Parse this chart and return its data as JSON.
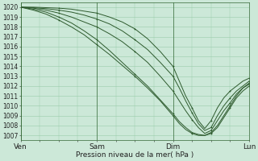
{
  "xlabel": "Pression niveau de la mer( hPa )",
  "bg_color": "#cce8d8",
  "grid_color": "#99ccaa",
  "line_color": "#2d5a2d",
  "ylim": [
    1006.5,
    1020.5
  ],
  "xlim": [
    0,
    72
  ],
  "xtick_positions": [
    0,
    24,
    48,
    72
  ],
  "xtick_labels": [
    "Ven",
    "Sam",
    "Dim",
    "Lun"
  ],
  "ytick_positions": [
    1007,
    1008,
    1009,
    1010,
    1011,
    1012,
    1013,
    1014,
    1015,
    1016,
    1017,
    1018,
    1019,
    1020
  ],
  "series": [
    {
      "x": [
        0,
        4,
        8,
        12,
        16,
        20,
        24,
        28,
        32,
        36,
        40,
        44,
        48,
        50,
        52,
        54,
        56,
        58,
        60,
        62,
        64,
        66,
        68,
        70,
        72
      ],
      "y": [
        1020.0,
        1019.7,
        1019.3,
        1018.7,
        1018.0,
        1017.2,
        1016.2,
        1015.2,
        1014.1,
        1013.0,
        1011.8,
        1010.5,
        1009.0,
        1008.2,
        1007.6,
        1007.2,
        1007.0,
        1007.0,
        1007.2,
        1007.8,
        1008.8,
        1009.8,
        1010.8,
        1011.5,
        1012.0
      ]
    },
    {
      "x": [
        0,
        4,
        8,
        12,
        16,
        20,
        24,
        28,
        32,
        36,
        40,
        44,
        48,
        50,
        52,
        54,
        56,
        58,
        60,
        62,
        64,
        66,
        68,
        70,
        72
      ],
      "y": [
        1020.0,
        1019.8,
        1019.5,
        1019.0,
        1018.4,
        1017.6,
        1016.7,
        1015.6,
        1014.4,
        1013.2,
        1012.0,
        1010.6,
        1009.2,
        1008.4,
        1007.8,
        1007.3,
        1007.1,
        1007.0,
        1007.3,
        1008.0,
        1009.0,
        1010.0,
        1011.0,
        1011.8,
        1012.3
      ]
    },
    {
      "x": [
        0,
        4,
        8,
        12,
        16,
        20,
        24,
        28,
        32,
        36,
        40,
        44,
        48,
        50,
        52,
        54,
        56,
        58,
        60,
        62,
        64,
        66,
        68,
        70,
        72
      ],
      "y": [
        1020.0,
        1019.9,
        1019.7,
        1019.4,
        1019.0,
        1018.5,
        1018.0,
        1017.3,
        1016.5,
        1015.5,
        1014.4,
        1013.0,
        1011.5,
        1010.5,
        1009.5,
        1008.6,
        1007.8,
        1007.2,
        1007.5,
        1008.5,
        1009.5,
        1010.3,
        1011.2,
        1011.8,
        1012.2
      ]
    },
    {
      "x": [
        0,
        4,
        8,
        12,
        16,
        20,
        24,
        28,
        32,
        36,
        40,
        44,
        48,
        50,
        52,
        54,
        56,
        58,
        60,
        62,
        64,
        66,
        68,
        70,
        72
      ],
      "y": [
        1020.0,
        1019.95,
        1019.85,
        1019.7,
        1019.5,
        1019.2,
        1018.8,
        1018.3,
        1017.6,
        1016.7,
        1015.7,
        1014.4,
        1013.0,
        1011.8,
        1010.5,
        1009.3,
        1008.2,
        1007.5,
        1007.8,
        1009.0,
        1010.0,
        1010.8,
        1011.5,
        1012.0,
        1012.5
      ]
    },
    {
      "x": [
        0,
        4,
        8,
        12,
        16,
        20,
        24,
        28,
        32,
        36,
        40,
        44,
        48,
        50,
        52,
        54,
        56,
        58,
        60,
        62,
        64,
        66,
        68,
        70,
        72
      ],
      "y": [
        1020.0,
        1020.0,
        1019.95,
        1019.9,
        1019.8,
        1019.6,
        1019.4,
        1019.0,
        1018.5,
        1017.8,
        1016.8,
        1015.5,
        1014.0,
        1012.5,
        1011.0,
        1009.8,
        1008.5,
        1007.7,
        1008.5,
        1009.8,
        1010.8,
        1011.5,
        1012.0,
        1012.5,
        1012.8
      ]
    }
  ]
}
